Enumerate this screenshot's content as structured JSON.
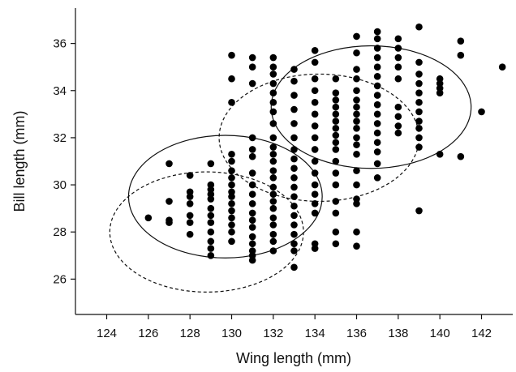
{
  "chart_data": {
    "type": "scatter",
    "xlabel": "Wing length (mm)",
    "ylabel": "Bill length (mm)",
    "xlim": [
      122.5,
      143.5
    ],
    "ylim": [
      24.5,
      37.5
    ],
    "x_ticks": [
      124,
      126,
      128,
      130,
      132,
      134,
      136,
      138,
      140,
      142
    ],
    "y_ticks": [
      26,
      28,
      30,
      32,
      34,
      36
    ],
    "x_tick_labels": [
      "124",
      "126",
      "128",
      "130",
      "132",
      "134",
      "136",
      "138",
      "140",
      "142"
    ],
    "y_tick_labels": [
      "26",
      "28",
      "30",
      "32",
      "34",
      "36"
    ],
    "grid": false,
    "point_color": "#000000",
    "points": [
      [
        126,
        28.6
      ],
      [
        127,
        30.9
      ],
      [
        127,
        29.3
      ],
      [
        127,
        28.5
      ],
      [
        127,
        28.4
      ],
      [
        128,
        30.4
      ],
      [
        128,
        29.7
      ],
      [
        128,
        29.5
      ],
      [
        128,
        29.2
      ],
      [
        128,
        28.7
      ],
      [
        128,
        28.4
      ],
      [
        128,
        27.9
      ],
      [
        129,
        30.9
      ],
      [
        129,
        30.0
      ],
      [
        129,
        29.8
      ],
      [
        129,
        29.6
      ],
      [
        129,
        29.4
      ],
      [
        129,
        29.0
      ],
      [
        129,
        28.7
      ],
      [
        129,
        28.4
      ],
      [
        129,
        28.0
      ],
      [
        129,
        27.6
      ],
      [
        129,
        27.3
      ],
      [
        129,
        27.0
      ],
      [
        130,
        35.5
      ],
      [
        130,
        34.5
      ],
      [
        130,
        33.5
      ],
      [
        130,
        31.3
      ],
      [
        130,
        31.0
      ],
      [
        130,
        30.6
      ],
      [
        130,
        30.3
      ],
      [
        130,
        30.0
      ],
      [
        130,
        29.7
      ],
      [
        130,
        29.5
      ],
      [
        130,
        29.2
      ],
      [
        130,
        28.9
      ],
      [
        130,
        28.6
      ],
      [
        130,
        28.3
      ],
      [
        130,
        28.0
      ],
      [
        130,
        27.6
      ],
      [
        131,
        35.4
      ],
      [
        131,
        35.0
      ],
      [
        131,
        34.3
      ],
      [
        131,
        32.0
      ],
      [
        131,
        31.5
      ],
      [
        131,
        31.2
      ],
      [
        131,
        30.5
      ],
      [
        131,
        30.0
      ],
      [
        131,
        29.6
      ],
      [
        131,
        29.2
      ],
      [
        131,
        28.8
      ],
      [
        131,
        28.5
      ],
      [
        131,
        28.2
      ],
      [
        131,
        27.8
      ],
      [
        131,
        27.5
      ],
      [
        131,
        27.2
      ],
      [
        131,
        27.0
      ],
      [
        131,
        26.8
      ],
      [
        132,
        35.4
      ],
      [
        132,
        35.0
      ],
      [
        132,
        34.7
      ],
      [
        132,
        34.3
      ],
      [
        132,
        33.9
      ],
      [
        132,
        33.5
      ],
      [
        132,
        33.1
      ],
      [
        132,
        32.6
      ],
      [
        132,
        32.0
      ],
      [
        132,
        31.6
      ],
      [
        132,
        31.3
      ],
      [
        132,
        31.0
      ],
      [
        132,
        30.6
      ],
      [
        132,
        30.3
      ],
      [
        132,
        29.9
      ],
      [
        132,
        29.6
      ],
      [
        132,
        29.3
      ],
      [
        132,
        29.0
      ],
      [
        132,
        28.6
      ],
      [
        132,
        28.3
      ],
      [
        132,
        27.9
      ],
      [
        132,
        27.6
      ],
      [
        132,
        27.2
      ],
      [
        133,
        34.9
      ],
      [
        133,
        34.4
      ],
      [
        133,
        33.8
      ],
      [
        133,
        33.2
      ],
      [
        133,
        32.6
      ],
      [
        133,
        32.0
      ],
      [
        133,
        31.5
      ],
      [
        133,
        31.1
      ],
      [
        133,
        30.7
      ],
      [
        133,
        30.3
      ],
      [
        133,
        29.9
      ],
      [
        133,
        29.5
      ],
      [
        133,
        29.1
      ],
      [
        133,
        28.7
      ],
      [
        133,
        28.3
      ],
      [
        133,
        27.9
      ],
      [
        133,
        27.5
      ],
      [
        133,
        27.2
      ],
      [
        133,
        26.5
      ],
      [
        134,
        35.7
      ],
      [
        134,
        35.2
      ],
      [
        134,
        34.5
      ],
      [
        134,
        34.0
      ],
      [
        134,
        33.5
      ],
      [
        134,
        33.0
      ],
      [
        134,
        32.5
      ],
      [
        134,
        32.0
      ],
      [
        134,
        31.5
      ],
      [
        134,
        31.0
      ],
      [
        134,
        30.5
      ],
      [
        134,
        30.0
      ],
      [
        134,
        29.6
      ],
      [
        134,
        29.2
      ],
      [
        134,
        28.8
      ],
      [
        134,
        27.5
      ],
      [
        134,
        27.3
      ],
      [
        135,
        34.5
      ],
      [
        135,
        33.9
      ],
      [
        135,
        33.6
      ],
      [
        135,
        33.3
      ],
      [
        135,
        33.0
      ],
      [
        135,
        32.7
      ],
      [
        135,
        32.4
      ],
      [
        135,
        32.1
      ],
      [
        135,
        31.8
      ],
      [
        135,
        31.5
      ],
      [
        135,
        31.0
      ],
      [
        135,
        30.5
      ],
      [
        135,
        30.0
      ],
      [
        135,
        29.3
      ],
      [
        135,
        28.8
      ],
      [
        135,
        28.0
      ],
      [
        135,
        27.5
      ],
      [
        136,
        36.3
      ],
      [
        136,
        35.6
      ],
      [
        136,
        34.9
      ],
      [
        136,
        34.5
      ],
      [
        136,
        34.0
      ],
      [
        136,
        33.6
      ],
      [
        136,
        33.3
      ],
      [
        136,
        33.0
      ],
      [
        136,
        32.7
      ],
      [
        136,
        32.4
      ],
      [
        136,
        32.0
      ],
      [
        136,
        31.7
      ],
      [
        136,
        31.3
      ],
      [
        136,
        30.6
      ],
      [
        136,
        30.0
      ],
      [
        136,
        29.4
      ],
      [
        136,
        29.2
      ],
      [
        136,
        28.0
      ],
      [
        136,
        27.4
      ],
      [
        137,
        36.5
      ],
      [
        137,
        36.2
      ],
      [
        137,
        35.8
      ],
      [
        137,
        35.4
      ],
      [
        137,
        35.0
      ],
      [
        137,
        34.6
      ],
      [
        137,
        34.2
      ],
      [
        137,
        33.8
      ],
      [
        137,
        33.4
      ],
      [
        137,
        33.0
      ],
      [
        137,
        32.6
      ],
      [
        137,
        32.2
      ],
      [
        137,
        31.8
      ],
      [
        137,
        31.4
      ],
      [
        137,
        30.9
      ],
      [
        137,
        30.3
      ],
      [
        138,
        36.2
      ],
      [
        138,
        35.8
      ],
      [
        138,
        35.4
      ],
      [
        138,
        35.0
      ],
      [
        138,
        34.5
      ],
      [
        138,
        33.3
      ],
      [
        138,
        32.9
      ],
      [
        138,
        32.5
      ],
      [
        138,
        32.2
      ],
      [
        139,
        36.7
      ],
      [
        139,
        35.2
      ],
      [
        139,
        34.7
      ],
      [
        139,
        34.3
      ],
      [
        139,
        33.9
      ],
      [
        139,
        33.5
      ],
      [
        139,
        33.1
      ],
      [
        139,
        32.7
      ],
      [
        139,
        32.4
      ],
      [
        139,
        32.0
      ],
      [
        139,
        31.6
      ],
      [
        139,
        28.9
      ],
      [
        140,
        34.5
      ],
      [
        140,
        34.3
      ],
      [
        140,
        34.1
      ],
      [
        140,
        33.9
      ],
      [
        140,
        31.3
      ],
      [
        141,
        36.1
      ],
      [
        141,
        35.5
      ],
      [
        141,
        31.2
      ],
      [
        142,
        33.1
      ],
      [
        143,
        35.0
      ]
    ],
    "ellipses": [
      {
        "style": "solid",
        "cx": 129.7,
        "cy": 29.5,
        "rx": 4.65,
        "ry": 2.6,
        "angle_deg": 0
      },
      {
        "style": "dashed",
        "cx": 128.8,
        "cy": 28.0,
        "rx": 4.65,
        "ry": 2.55,
        "angle_deg": 0
      },
      {
        "style": "solid",
        "cx": 136.7,
        "cy": 33.3,
        "rx": 4.8,
        "ry": 2.6,
        "angle_deg": 0
      },
      {
        "style": "dashed",
        "cx": 134.2,
        "cy": 32.0,
        "rx": 4.8,
        "ry": 2.7,
        "angle_deg": 0
      }
    ]
  }
}
